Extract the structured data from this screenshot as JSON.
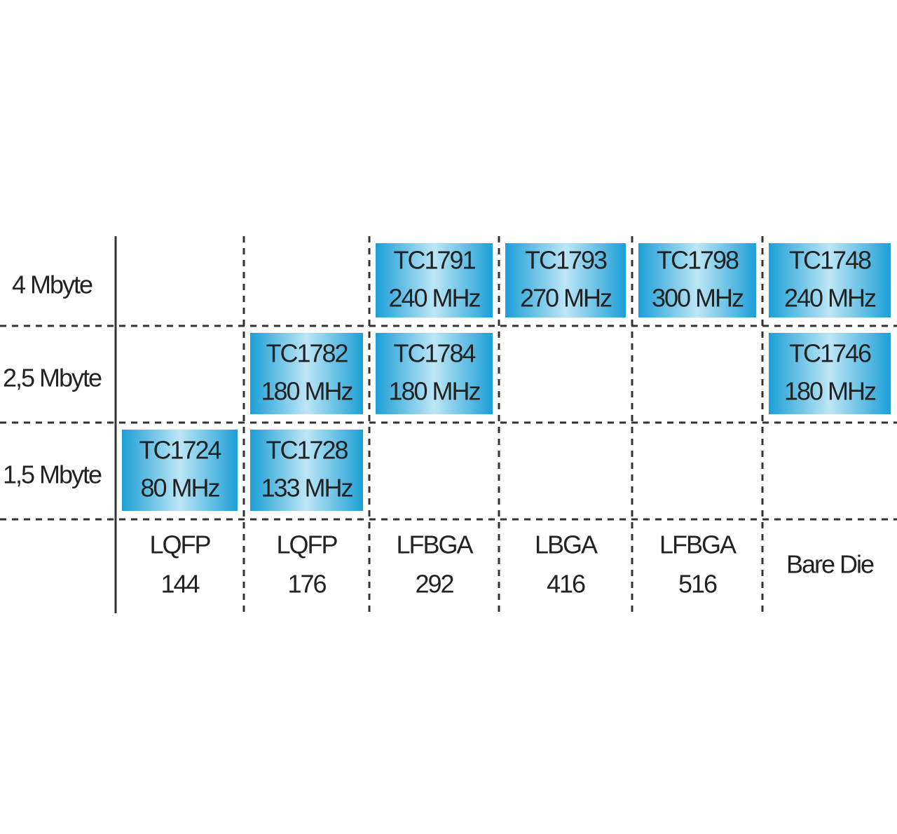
{
  "rows": [
    "4 Mbyte",
    "2,5 Mbyte",
    "1,5 Mbyte"
  ],
  "columns": [
    [
      "LQFP",
      "144"
    ],
    [
      "LQFP",
      "176"
    ],
    [
      "LFBGA",
      "292"
    ],
    [
      "LBGA",
      "416"
    ],
    [
      "LFBGA",
      "516"
    ],
    [
      "Bare Die"
    ]
  ],
  "grid": [
    [
      null,
      null,
      {
        "name": "TC1791",
        "freq": "240 MHz"
      },
      {
        "name": "TC1793",
        "freq": "270 MHz"
      },
      {
        "name": "TC1798",
        "freq": "300 MHz"
      },
      {
        "name": "TC1748",
        "freq": "240 MHz"
      }
    ],
    [
      null,
      {
        "name": "TC1782",
        "freq": "180 MHz"
      },
      {
        "name": "TC1784",
        "freq": "180 MHz"
      },
      null,
      null,
      {
        "name": "TC1746",
        "freq": "180 MHz"
      }
    ],
    [
      {
        "name": "TC1724",
        "freq": "80 MHz"
      },
      {
        "name": "TC1728",
        "freq": "133 MHz"
      },
      null,
      null,
      null,
      null
    ]
  ]
}
